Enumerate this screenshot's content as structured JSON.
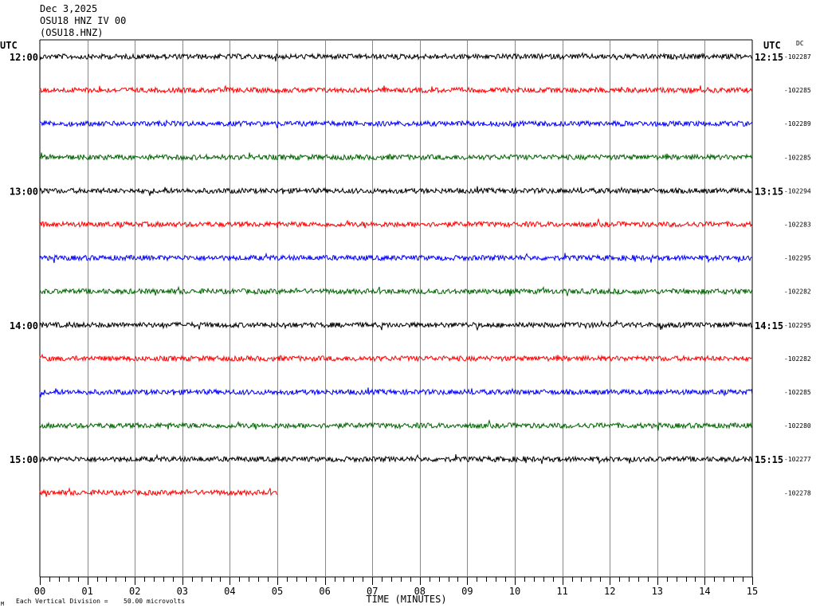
{
  "header": {
    "date": "Dec 3,2025",
    "station": "OSU18 HNZ IV 00",
    "code": "(OSU18.HNZ)"
  },
  "labels": {
    "utc_left": "UTC",
    "utc_right": "UTC",
    "dc": "DC",
    "x_axis_title": "TIME (MINUTES)",
    "footer_prefix": "Each Vertical Division =",
    "footer_value": "50.00 microvolts",
    "corner_mark": "M"
  },
  "chart_data": {
    "type": "line",
    "title": "",
    "xlabel": "TIME (MINUTES)",
    "xlim": [
      0,
      15
    ],
    "x_ticks": [
      "00",
      "01",
      "02",
      "03",
      "04",
      "05",
      "06",
      "07",
      "08",
      "09",
      "10",
      "11",
      "12",
      "13",
      "14",
      "15"
    ],
    "trace_colors": [
      "#000000",
      "#ff0000",
      "#0000ff",
      "#006400"
    ],
    "rows": [
      {
        "left_time": "12:00",
        "right_time": "12:15",
        "dc": "-102287",
        "end_minute": 15
      },
      {
        "left_time": "",
        "right_time": "",
        "dc": "-102285",
        "end_minute": 15
      },
      {
        "left_time": "",
        "right_time": "",
        "dc": "-102289",
        "end_minute": 15
      },
      {
        "left_time": "",
        "right_time": "",
        "dc": "-102285",
        "end_minute": 15
      },
      {
        "left_time": "13:00",
        "right_time": "13:15",
        "dc": "-102294",
        "end_minute": 15
      },
      {
        "left_time": "",
        "right_time": "",
        "dc": "-102283",
        "end_minute": 15
      },
      {
        "left_time": "",
        "right_time": "",
        "dc": "-102295",
        "end_minute": 15
      },
      {
        "left_time": "",
        "right_time": "",
        "dc": "-102282",
        "end_minute": 15
      },
      {
        "left_time": "14:00",
        "right_time": "14:15",
        "dc": "-102295",
        "end_minute": 15
      },
      {
        "left_time": "",
        "right_time": "",
        "dc": "-102282",
        "end_minute": 15
      },
      {
        "left_time": "",
        "right_time": "",
        "dc": "-102285",
        "end_minute": 15
      },
      {
        "left_time": "",
        "right_time": "",
        "dc": "-102280",
        "end_minute": 15
      },
      {
        "left_time": "15:00",
        "right_time": "15:15",
        "dc": "-102277",
        "end_minute": 15
      },
      {
        "left_time": "",
        "right_time": "",
        "dc": "-102278",
        "end_minute": 5
      }
    ],
    "grid": true
  }
}
